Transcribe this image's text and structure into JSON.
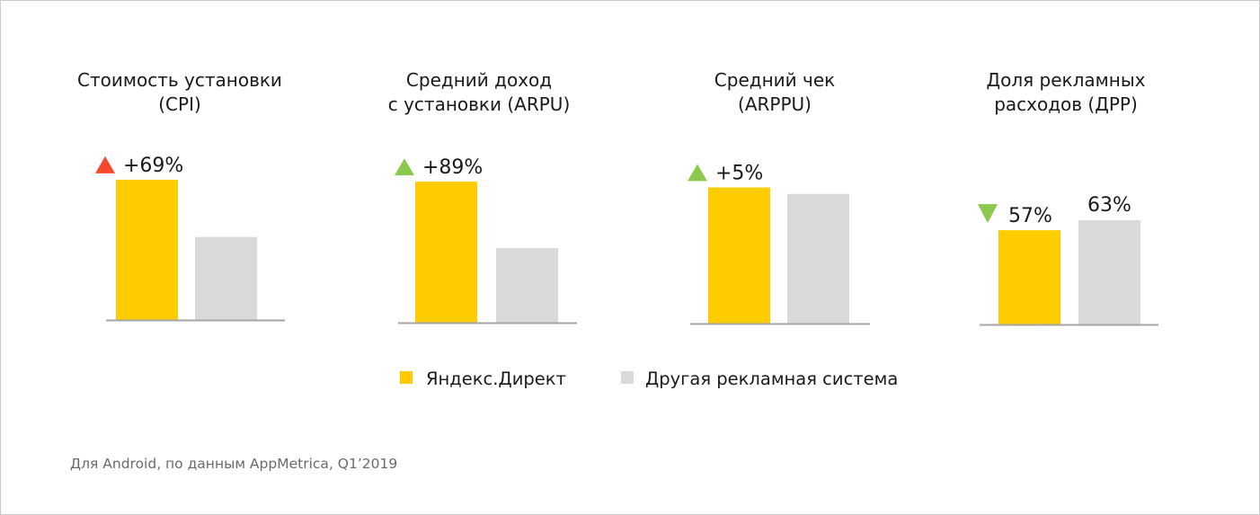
{
  "chart_data": [
    {
      "type": "bar",
      "title": [
        "Стоимость установки",
        "(CPI)"
      ],
      "categories": [
        "Яндекс.Директ",
        "Другая рекламная система"
      ],
      "values": [
        169,
        100
      ],
      "ylim": [
        0,
        183
      ],
      "unit": "relative index (other system = 100)",
      "annotation": {
        "text": "+69%",
        "direction": "up",
        "sentiment": "negative",
        "on_series": 0
      },
      "value_labels": [
        null,
        null
      ]
    },
    {
      "type": "bar",
      "title": [
        "Средний доход",
        "с установки (ARPU)"
      ],
      "categories": [
        "Яндекс.Директ",
        "Другая рекламная система"
      ],
      "values": [
        189,
        100
      ],
      "ylim": [
        0,
        188
      ],
      "unit": "relative index (other system = 100)",
      "annotation": {
        "text": "+89%",
        "direction": "up",
        "sentiment": "positive",
        "on_series": 0
      },
      "value_labels": [
        null,
        null
      ]
    },
    {
      "type": "bar",
      "title": [
        "Средний чек",
        "(ARPPU)"
      ],
      "categories": [
        "Яндекс.Директ",
        "Другая рекламная система"
      ],
      "values": [
        105,
        100
      ],
      "ylim": [
        0,
        104
      ],
      "unit": "relative index (other system = 100)",
      "annotation": {
        "text": "+5%",
        "direction": "up",
        "sentiment": "positive",
        "on_series": 0
      },
      "value_labels": [
        null,
        null
      ]
    },
    {
      "type": "bar",
      "title": [
        "Доля рекламных",
        "расходов (ДРР)"
      ],
      "categories": [
        "Яндекс.Директ",
        "Другая рекламная система"
      ],
      "values": [
        57,
        63
      ],
      "ylim": [
        0,
        100
      ],
      "unit": "%",
      "annotation": {
        "text": "57%",
        "direction": "down",
        "sentiment": "positive",
        "on_series": 0
      },
      "value_labels": [
        null,
        "63%"
      ]
    }
  ],
  "legend": {
    "placement": "bottom-center",
    "items": [
      {
        "label": "Яндекс.Директ",
        "color": "#ffcc00"
      },
      {
        "label": "Другая рекламная система",
        "color": "#d9d9d9"
      }
    ]
  },
  "colors": {
    "series": [
      "#ffcc00",
      "#d9d9d9"
    ],
    "axis": "#a6a6a6",
    "up_negative": "#f44a2b",
    "positive": "#8cc84b",
    "footnote": "#6b6b6b"
  },
  "footnote": "Для Android, по данным AppMetrica, Q1’2019"
}
